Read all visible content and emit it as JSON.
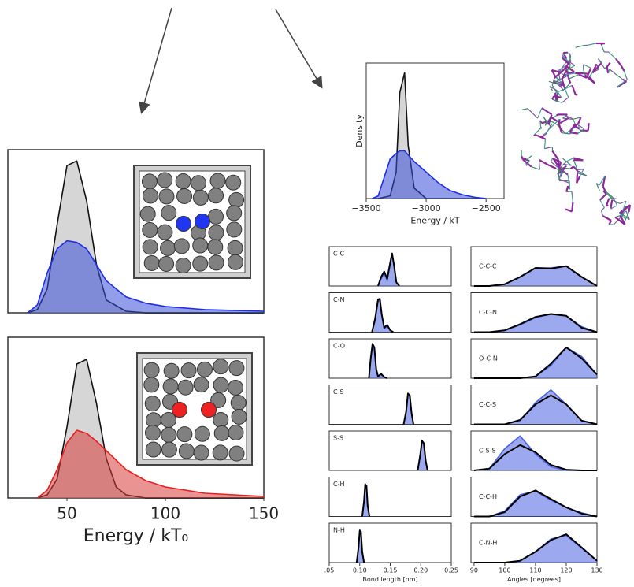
{
  "chart_data": [
    {
      "type": "area",
      "xlim": [
        20,
        150
      ],
      "ylim": [
        0,
        1
      ],
      "x": [
        30,
        35,
        40,
        45,
        50,
        55,
        60,
        65,
        70,
        80,
        90,
        100,
        120,
        150
      ],
      "series": [
        {
          "color": "#b4b4b4",
          "line_color": "#111111",
          "values": [
            0,
            0.02,
            0.15,
            0.55,
            0.92,
            0.95,
            0.7,
            0.3,
            0.08,
            0.01,
            0,
            0,
            0,
            0
          ]
        },
        {
          "color": "#3a4fd8",
          "line_color": "#1f2ee6",
          "values": [
            0,
            0.05,
            0.25,
            0.4,
            0.45,
            0.44,
            0.4,
            0.3,
            0.2,
            0.1,
            0.06,
            0.04,
            0.02,
            0.01
          ]
        }
      ]
    },
    {
      "type": "area",
      "xlim": [
        20,
        150
      ],
      "ylim": [
        0,
        1
      ],
      "xticks": [
        50,
        100,
        150
      ],
      "xlabel": "Energy / kT₀",
      "x": [
        35,
        40,
        45,
        50,
        55,
        60,
        65,
        70,
        75,
        80,
        90,
        100,
        120,
        150
      ],
      "series": [
        {
          "color": "#b4b4b4",
          "line_color": "#111111",
          "values": [
            0,
            0.02,
            0.12,
            0.45,
            0.85,
            0.88,
            0.6,
            0.25,
            0.07,
            0.02,
            0,
            0,
            0,
            0
          ]
        },
        {
          "color": "#d83a3a",
          "line_color": "#e61f1f",
          "values": [
            0,
            0.05,
            0.18,
            0.35,
            0.43,
            0.41,
            0.36,
            0.3,
            0.24,
            0.18,
            0.11,
            0.07,
            0.03,
            0.01
          ]
        }
      ]
    },
    {
      "type": "area",
      "xlim": [
        -3500,
        -2350
      ],
      "ylim": [
        0,
        1
      ],
      "ylabel": "Density",
      "xlabel": "Energy / kT",
      "xticks": [
        {
          "value": -3500,
          "label": "−3500"
        },
        {
          "value": -3000,
          "label": "−3000"
        },
        {
          "value": -2500,
          "label": "−2500"
        }
      ],
      "x": [
        -3450,
        -3400,
        -3300,
        -3250,
        -3220,
        -3180,
        -3150,
        -3100,
        -3000,
        -2900,
        -2800,
        -2700,
        -2600,
        -2500
      ],
      "series": [
        {
          "color": "#b4b4b4",
          "line_color": "#111111",
          "values": [
            0,
            0,
            0.02,
            0.2,
            0.8,
            0.95,
            0.4,
            0.08,
            0,
            0,
            0,
            0,
            0,
            0
          ]
        },
        {
          "color": "#3a4fd8",
          "line_color": "#1f2ee6",
          "values": [
            0,
            0.02,
            0.3,
            0.34,
            0.36,
            0.36,
            0.33,
            0.28,
            0.2,
            0.12,
            0.06,
            0.03,
            0.01,
            0
          ]
        }
      ]
    },
    {
      "type": "area",
      "label": "C-C",
      "xlim": [
        0.05,
        0.25
      ],
      "ylim": [
        0,
        1
      ],
      "x": [
        0.13,
        0.135,
        0.14,
        0.145,
        0.15,
        0.153,
        0.156,
        0.16,
        0.165
      ],
      "series": [
        {
          "color": "#4a62e0",
          "values": [
            0,
            0.2,
            0.35,
            0.15,
            0.6,
            0.85,
            0.6,
            0.1,
            0
          ]
        },
        {
          "line_color": "#000000",
          "values": [
            0,
            0.25,
            0.4,
            0.2,
            0.65,
            0.9,
            0.6,
            0.1,
            0
          ]
        }
      ]
    },
    {
      "type": "area",
      "label": "C-N",
      "xlim": [
        0.05,
        0.25
      ],
      "ylim": [
        0,
        1
      ],
      "x": [
        0.12,
        0.125,
        0.13,
        0.133,
        0.136,
        0.14,
        0.145,
        0.15,
        0.155
      ],
      "series": [
        {
          "color": "#4a62e0",
          "values": [
            0,
            0.3,
            0.85,
            0.9,
            0.5,
            0.1,
            0.15,
            0.05,
            0
          ]
        },
        {
          "line_color": "#000000",
          "values": [
            0,
            0.35,
            0.9,
            0.92,
            0.5,
            0.12,
            0.2,
            0.05,
            0
          ]
        }
      ]
    },
    {
      "type": "area",
      "label": "C-O",
      "xlim": [
        0.05,
        0.25
      ],
      "ylim": [
        0,
        1
      ],
      "x": [
        0.115,
        0.118,
        0.121,
        0.124,
        0.127,
        0.13,
        0.135,
        0.14,
        0.145
      ],
      "series": [
        {
          "color": "#4a62e0",
          "values": [
            0,
            0.5,
            0.95,
            0.8,
            0.2,
            0.05,
            0.1,
            0.03,
            0
          ]
        },
        {
          "line_color": "#000000",
          "values": [
            0,
            0.55,
            0.95,
            0.85,
            0.25,
            0.05,
            0.12,
            0.03,
            0
          ]
        }
      ]
    },
    {
      "type": "area",
      "label": "C-S",
      "xlim": [
        0.05,
        0.25
      ],
      "ylim": [
        0,
        1
      ],
      "x": [
        0.172,
        0.176,
        0.179,
        0.182,
        0.185,
        0.188
      ],
      "series": [
        {
          "color": "#4a62e0",
          "values": [
            0,
            0.3,
            0.8,
            0.8,
            0.3,
            0
          ]
        },
        {
          "line_color": "#000000",
          "values": [
            0,
            0.35,
            0.85,
            0.8,
            0.3,
            0
          ]
        }
      ]
    },
    {
      "type": "area",
      "label": "S-S",
      "xlim": [
        0.05,
        0.25
      ],
      "ylim": [
        0,
        1
      ],
      "x": [
        0.195,
        0.199,
        0.202,
        0.205,
        0.208,
        0.211
      ],
      "series": [
        {
          "color": "#4a62e0",
          "values": [
            0,
            0.4,
            0.8,
            0.75,
            0.3,
            0
          ]
        },
        {
          "line_color": "#000000",
          "values": [
            0,
            0.42,
            0.82,
            0.75,
            0.28,
            0
          ]
        }
      ]
    },
    {
      "type": "area",
      "label": "C-H",
      "xlim": [
        0.05,
        0.25
      ],
      "ylim": [
        0,
        1
      ],
      "x": [
        0.104,
        0.107,
        0.109,
        0.111,
        0.113,
        0.116
      ],
      "series": [
        {
          "color": "#4a62e0",
          "values": [
            0,
            0.4,
            0.9,
            0.85,
            0.3,
            0
          ]
        },
        {
          "line_color": "#000000",
          "values": [
            0,
            0.42,
            0.88,
            0.85,
            0.3,
            0
          ]
        }
      ]
    },
    {
      "type": "area",
      "label": "N-H",
      "xlim": [
        0.05,
        0.25
      ],
      "ylim": [
        0,
        1
      ],
      "xlabel": "Bond length [nm]",
      "xticks": [
        {
          "value": 0.05,
          "label": ".05"
        },
        {
          "value": 0.1,
          "label": "0.10"
        },
        {
          "value": 0.15,
          "label": "0.15"
        },
        {
          "value": 0.2,
          "label": "0.20"
        },
        {
          "value": 0.25,
          "label": "0.25"
        }
      ],
      "x": [
        0.095,
        0.098,
        0.1,
        0.102,
        0.104,
        0.107
      ],
      "series": [
        {
          "color": "#4a62e0",
          "values": [
            0,
            0.4,
            0.9,
            0.85,
            0.3,
            0
          ]
        },
        {
          "line_color": "#000000",
          "values": [
            0,
            0.42,
            0.88,
            0.85,
            0.3,
            0
          ]
        }
      ]
    },
    {
      "type": "area",
      "label": "C-C-C",
      "xlim": [
        89,
        130
      ],
      "ylim": [
        0,
        1
      ],
      "x": [
        90,
        95,
        100,
        105,
        110,
        115,
        120,
        125,
        130
      ],
      "series": [
        {
          "color": "#4a62e0",
          "values": [
            0,
            0,
            0.05,
            0.25,
            0.5,
            0.5,
            0.55,
            0.25,
            0
          ]
        },
        {
          "line_color": "#000000",
          "values": [
            0,
            0,
            0.05,
            0.25,
            0.5,
            0.48,
            0.55,
            0.25,
            0
          ]
        }
      ]
    },
    {
      "type": "area",
      "label": "C-C-N",
      "xlim": [
        89,
        130
      ],
      "ylim": [
        0,
        1
      ],
      "x": [
        90,
        95,
        100,
        105,
        110,
        115,
        120,
        125,
        130
      ],
      "series": [
        {
          "color": "#4a62e0",
          "values": [
            0,
            0,
            0.05,
            0.2,
            0.4,
            0.5,
            0.45,
            0.15,
            0
          ]
        },
        {
          "line_color": "#000000",
          "values": [
            0,
            0,
            0.05,
            0.22,
            0.42,
            0.5,
            0.45,
            0.12,
            0
          ]
        }
      ]
    },
    {
      "type": "area",
      "label": "O-C-N",
      "xlim": [
        89,
        130
      ],
      "ylim": [
        0,
        1
      ],
      "x": [
        90,
        95,
        100,
        105,
        110,
        115,
        120,
        125,
        130
      ],
      "series": [
        {
          "color": "#4a62e0",
          "values": [
            0,
            0,
            0,
            0,
            0.05,
            0.35,
            0.85,
            0.6,
            0.1
          ]
        },
        {
          "line_color": "#000000",
          "values": [
            0,
            0,
            0,
            0,
            0.05,
            0.4,
            0.85,
            0.55,
            0.1
          ]
        }
      ]
    },
    {
      "type": "area",
      "label": "C-C-S",
      "xlim": [
        89,
        130
      ],
      "ylim": [
        0,
        1
      ],
      "x": [
        90,
        95,
        100,
        105,
        110,
        115,
        120,
        125,
        130
      ],
      "series": [
        {
          "color": "#4a62e0",
          "values": [
            0,
            0,
            0,
            0.1,
            0.6,
            0.95,
            0.55,
            0.1,
            0
          ]
        },
        {
          "line_color": "#000000",
          "values": [
            0,
            0,
            0,
            0.12,
            0.55,
            0.8,
            0.55,
            0.1,
            0
          ]
        }
      ]
    },
    {
      "type": "area",
      "label": "C-S-S",
      "xlim": [
        89,
        130
      ],
      "ylim": [
        0,
        1
      ],
      "x": [
        90,
        95,
        100,
        105,
        110,
        115,
        120,
        125,
        130
      ],
      "series": [
        {
          "color": "#4a62e0",
          "values": [
            0,
            0.05,
            0.6,
            0.95,
            0.45,
            0.1,
            0,
            0,
            0
          ]
        },
        {
          "line_color": "#000000",
          "values": [
            0,
            0.05,
            0.45,
            0.7,
            0.5,
            0.15,
            0.02,
            0,
            0
          ]
        }
      ]
    },
    {
      "type": "area",
      "label": "C-C-H",
      "xlim": [
        89,
        130
      ],
      "ylim": [
        0,
        1
      ],
      "x": [
        90,
        95,
        100,
        105,
        110,
        115,
        120,
        125,
        130
      ],
      "series": [
        {
          "color": "#4a62e0",
          "values": [
            0,
            0,
            0.15,
            0.6,
            0.7,
            0.45,
            0.25,
            0.1,
            0
          ]
        },
        {
          "line_color": "#000000",
          "values": [
            0,
            0,
            0.12,
            0.55,
            0.72,
            0.48,
            0.25,
            0.08,
            0
          ]
        }
      ]
    },
    {
      "type": "area",
      "label": "C-N-H",
      "xlim": [
        89,
        130
      ],
      "ylim": [
        0,
        1
      ],
      "xlabel": "Angles [degrees]",
      "xticks": [
        90,
        100,
        110,
        120,
        130
      ],
      "x": [
        90,
        95,
        100,
        105,
        110,
        115,
        120,
        125,
        130
      ],
      "series": [
        {
          "color": "#4a62e0",
          "values": [
            0,
            0,
            0,
            0.05,
            0.3,
            0.65,
            0.75,
            0.4,
            0.05
          ]
        },
        {
          "line_color": "#000000",
          "values": [
            0,
            0,
            0,
            0.05,
            0.3,
            0.62,
            0.78,
            0.42,
            0.05
          ]
        }
      ]
    }
  ]
}
